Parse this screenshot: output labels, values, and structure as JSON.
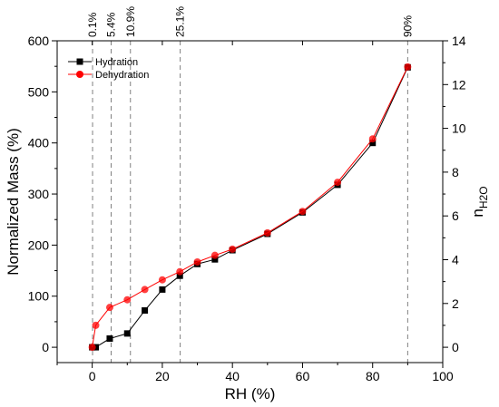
{
  "chart_data": {
    "type": "line",
    "xlabel": "RH (%)",
    "ylabel": "Normalized Mass (%)",
    "y2label_main": "n",
    "y2label_sub": "H2O",
    "xlim": [
      -10,
      100
    ],
    "ylim": [
      -30,
      600
    ],
    "y2lim": [
      -0.7,
      14
    ],
    "x_ticks": [
      0,
      20,
      40,
      60,
      80,
      100
    ],
    "y_ticks": [
      0,
      100,
      200,
      300,
      400,
      500,
      600
    ],
    "y2_ticks": [
      0,
      2,
      4,
      6,
      8,
      10,
      12,
      14
    ],
    "reference_lines": [
      {
        "x": 0.1,
        "label": "0.1%"
      },
      {
        "x": 5.4,
        "label": "5.4%"
      },
      {
        "x": 10.9,
        "label": "10.9%"
      },
      {
        "x": 25.1,
        "label": "25.1%"
      },
      {
        "x": 90,
        "label": "90%"
      }
    ],
    "series": [
      {
        "name": "Hydration",
        "color": "#000000",
        "marker": "square",
        "x": [
          0,
          1,
          5,
          10,
          15,
          20,
          25,
          30,
          35,
          40,
          50,
          60,
          70,
          80,
          90
        ],
        "y": [
          0,
          0,
          17,
          27,
          72,
          113,
          140,
          163,
          172,
          190,
          222,
          264,
          318,
          400,
          548
        ]
      },
      {
        "name": "Dehydration",
        "color": "#ff0000",
        "marker": "circle",
        "x": [
          0,
          1,
          5,
          10,
          15,
          20,
          25,
          30,
          35,
          40,
          50,
          60,
          70,
          80,
          90
        ],
        "y": [
          0,
          43,
          78,
          93,
          113,
          132,
          148,
          167,
          180,
          192,
          224,
          266,
          323,
          408,
          549
        ]
      }
    ],
    "legend_position": "top-left"
  }
}
